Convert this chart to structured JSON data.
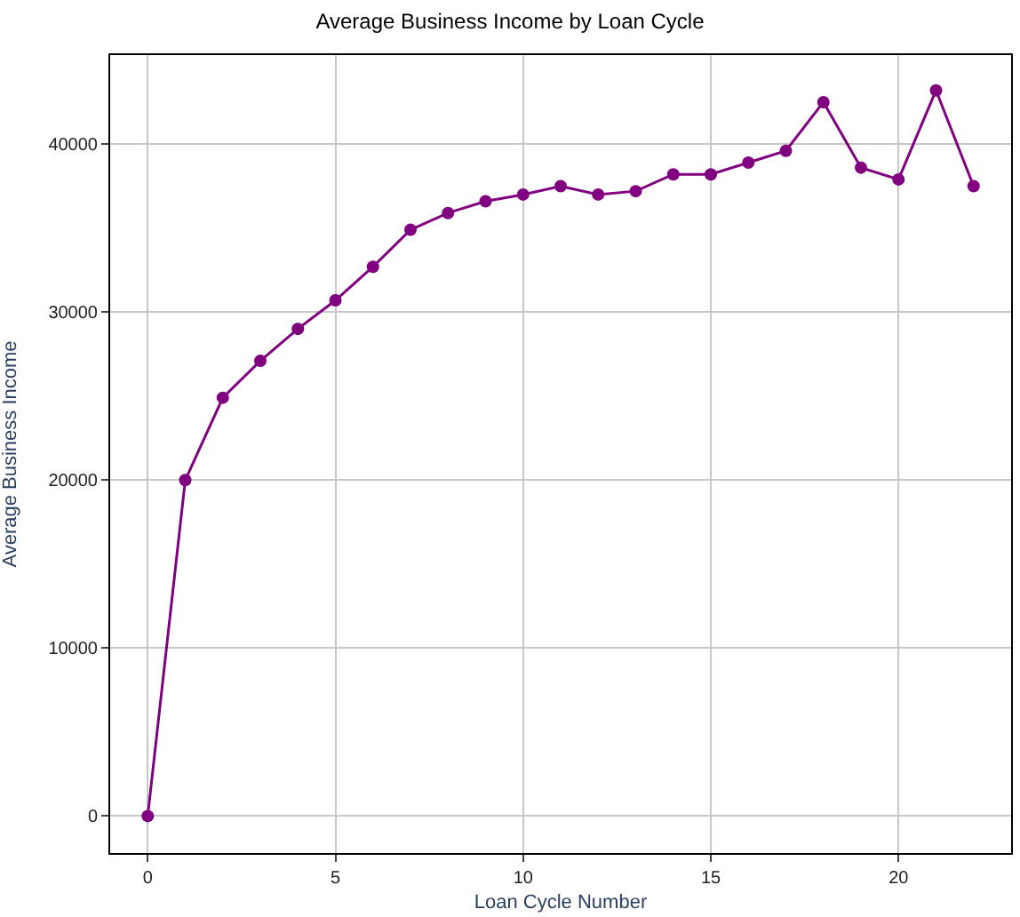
{
  "chart_data": {
    "type": "line",
    "title": "Average Business Income by Loan Cycle",
    "xlabel": "Loan Cycle Number",
    "ylabel": "Average Business Income",
    "x": [
      0,
      1,
      2,
      3,
      4,
      5,
      6,
      7,
      8,
      9,
      10,
      11,
      12,
      13,
      14,
      15,
      16,
      17,
      18,
      19,
      20,
      21,
      22
    ],
    "series": [
      {
        "color": "#800080",
        "values": [
          0,
          20000,
          24900,
          27100,
          29000,
          30700,
          32700,
          34900,
          35900,
          36600,
          37000,
          37500,
          37000,
          37200,
          38200,
          38200,
          38900,
          39600,
          42500,
          38600,
          37900,
          43200,
          37500
        ]
      }
    ],
    "xlim": [
      -1.0,
      23.0
    ],
    "ylim": [
      -2200,
      45300
    ],
    "xticks": [
      0,
      5,
      10,
      15,
      20
    ],
    "yticks": [
      0,
      10000,
      20000,
      30000,
      40000
    ],
    "grid": true,
    "marker": "circle",
    "line_style": "solid",
    "legend": false
  }
}
